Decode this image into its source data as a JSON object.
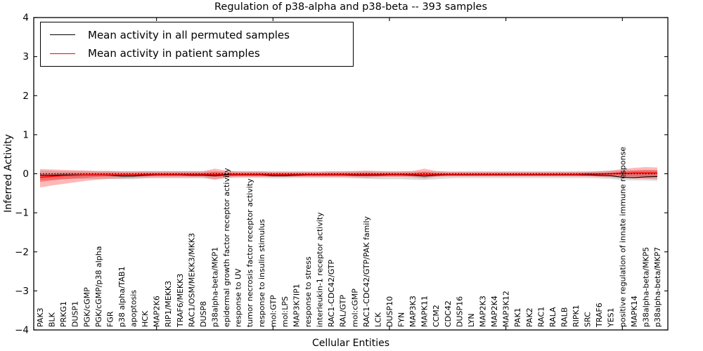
{
  "chart_data": {
    "type": "line",
    "title": "Regulation of p38-alpha and p38-beta -- 393 samples",
    "xlabel": "Cellular Entities",
    "ylabel": "Inferred Activity",
    "ylim": [
      -4,
      4
    ],
    "yticks": [
      -4,
      -3,
      -2,
      -1,
      0,
      1,
      2,
      3,
      4
    ],
    "xtick_indices": [
      10,
      20,
      30,
      40,
      50
    ],
    "grid": false,
    "legend_position": "upper left",
    "categories": [
      "PAK3",
      "BLK",
      "PRKG1",
      "DUSP1",
      "PGK/cGMP",
      "PGK/cGMP/p38 alpha",
      "FGR",
      "p38 alpha/TAB1",
      "apoptosis",
      "HCK",
      "MAP2K6",
      "RIP1/MEKK3",
      "TRAF6/MEKK3",
      "RAC1/OSM/MEKK3/MKK3",
      "DUSP8",
      "p38alpha-beta/MKP1",
      "epidermal growth factor receptor activity",
      "response to UV",
      "tumor necrosis factor receptor activity",
      "response to insulin stimulus",
      "mol:GTP",
      "mol:LPS",
      "MAP3K7IP1",
      "response to stress",
      "interleukin-1 receptor activity",
      "RAC1-CDC42/GTP",
      "RAL/GTP",
      "mol:cGMP",
      "RAC1-CDC42/GTP/PAK family",
      "LCK",
      "DUSP10",
      "FYN",
      "MAP3K3",
      "MAPK11",
      "CCM2",
      "CDC42",
      "DUSP16",
      "LYN",
      "MAP2K3",
      "MAP2K4",
      "MAP3K12",
      "PAK1",
      "PAK2",
      "RAC1",
      "RALA",
      "RALB",
      "RIPK1",
      "SRC",
      "TRAF6",
      "YES1",
      "positive regulation of innate immune response",
      "MAPK14",
      "p38alpha-beta/MKP5",
      "p38alpha-beta/MKP7"
    ],
    "zero_line": {
      "y": 0,
      "style": "dotted",
      "color": "#000000"
    },
    "series": [
      {
        "name": "Mean activity in all permuted samples",
        "color": "#000000",
        "values": [
          -0.04,
          -0.04,
          -0.03,
          -0.03,
          -0.03,
          -0.03,
          -0.04,
          -0.06,
          -0.06,
          -0.04,
          -0.03,
          -0.03,
          -0.03,
          -0.04,
          -0.04,
          -0.05,
          -0.03,
          -0.03,
          -0.03,
          -0.03,
          -0.05,
          -0.05,
          -0.04,
          -0.03,
          -0.03,
          -0.03,
          -0.03,
          -0.04,
          -0.04,
          -0.04,
          -0.03,
          -0.03,
          -0.04,
          -0.06,
          -0.04,
          -0.03,
          -0.03,
          -0.03,
          -0.03,
          -0.03,
          -0.03,
          -0.03,
          -0.03,
          -0.03,
          -0.03,
          -0.03,
          -0.03,
          -0.03,
          -0.04,
          -0.05,
          -0.09,
          -0.1,
          -0.08,
          -0.07
        ]
      },
      {
        "name": "Mean activity in patient samples",
        "color": "#ff0000",
        "values": [
          -0.09,
          -0.07,
          -0.05,
          -0.04,
          -0.03,
          -0.03,
          -0.03,
          -0.03,
          -0.03,
          -0.02,
          -0.02,
          -0.02,
          -0.02,
          -0.02,
          -0.02,
          -0.02,
          -0.02,
          -0.02,
          -0.02,
          -0.02,
          -0.02,
          -0.02,
          -0.02,
          -0.02,
          -0.02,
          -0.02,
          -0.02,
          -0.02,
          -0.02,
          -0.02,
          -0.02,
          -0.02,
          -0.02,
          -0.02,
          -0.02,
          -0.02,
          -0.02,
          -0.02,
          -0.02,
          -0.02,
          -0.02,
          -0.02,
          -0.02,
          -0.02,
          -0.02,
          -0.02,
          -0.02,
          -0.01,
          -0.01,
          0.0,
          0.01,
          0.02,
          0.02,
          0.02
        ]
      }
    ],
    "bands": [
      {
        "name": "permuted-samples-band",
        "color": "#bdbdbd",
        "opacity": 0.55,
        "upper": [
          0.08,
          0.08,
          0.07,
          0.07,
          0.07,
          0.07,
          0.07,
          0.06,
          0.06,
          0.07,
          0.07,
          0.07,
          0.07,
          0.07,
          0.07,
          0.07,
          0.06,
          0.06,
          0.06,
          0.06,
          0.06,
          0.06,
          0.06,
          0.06,
          0.06,
          0.06,
          0.06,
          0.06,
          0.06,
          0.06,
          0.06,
          0.06,
          0.06,
          0.06,
          0.06,
          0.06,
          0.06,
          0.06,
          0.06,
          0.06,
          0.06,
          0.06,
          0.06,
          0.06,
          0.06,
          0.06,
          0.06,
          0.06,
          0.07,
          0.08,
          0.09,
          0.09,
          0.1,
          0.1
        ],
        "lower": [
          -0.16,
          -0.15,
          -0.14,
          -0.13,
          -0.13,
          -0.13,
          -0.13,
          -0.14,
          -0.14,
          -0.12,
          -0.12,
          -0.12,
          -0.12,
          -0.12,
          -0.12,
          -0.13,
          -0.11,
          -0.11,
          -0.11,
          -0.11,
          -0.12,
          -0.12,
          -0.11,
          -0.11,
          -0.11,
          -0.11,
          -0.11,
          -0.12,
          -0.13,
          -0.14,
          -0.14,
          -0.14,
          -0.15,
          -0.16,
          -0.14,
          -0.12,
          -0.11,
          -0.11,
          -0.11,
          -0.11,
          -0.11,
          -0.11,
          -0.11,
          -0.11,
          -0.11,
          -0.11,
          -0.11,
          -0.11,
          -0.12,
          -0.13,
          -0.16,
          -0.17,
          -0.17,
          -0.18
        ]
      },
      {
        "name": "patient-samples-band-outer",
        "color": "#ff0000",
        "opacity": 0.28,
        "upper": [
          0.12,
          0.11,
          0.1,
          0.09,
          0.08,
          0.07,
          0.07,
          0.06,
          0.06,
          0.06,
          0.06,
          0.06,
          0.06,
          0.06,
          0.06,
          0.13,
          0.08,
          0.06,
          0.06,
          0.06,
          0.05,
          0.05,
          0.05,
          0.05,
          0.05,
          0.06,
          0.06,
          0.07,
          0.08,
          0.07,
          0.06,
          0.06,
          0.07,
          0.13,
          0.07,
          0.05,
          0.05,
          0.05,
          0.05,
          0.05,
          0.05,
          0.05,
          0.05,
          0.05,
          0.05,
          0.05,
          0.05,
          0.05,
          0.06,
          0.08,
          0.12,
          0.15,
          0.17,
          0.16
        ],
        "lower": [
          -0.35,
          -0.3,
          -0.26,
          -0.22,
          -0.18,
          -0.15,
          -0.13,
          -0.12,
          -0.11,
          -0.1,
          -0.09,
          -0.09,
          -0.09,
          -0.09,
          -0.09,
          -0.16,
          -0.1,
          -0.08,
          -0.08,
          -0.08,
          -0.08,
          -0.08,
          -0.08,
          -0.08,
          -0.08,
          -0.08,
          -0.08,
          -0.09,
          -0.1,
          -0.09,
          -0.08,
          -0.08,
          -0.09,
          -0.12,
          -0.08,
          -0.07,
          -0.07,
          -0.07,
          -0.07,
          -0.07,
          -0.07,
          -0.07,
          -0.07,
          -0.07,
          -0.07,
          -0.07,
          -0.07,
          -0.07,
          -0.08,
          -0.09,
          -0.11,
          -0.12,
          -0.13,
          -0.14
        ]
      },
      {
        "name": "patient-samples-band-inner",
        "color": "#ff0000",
        "opacity": 0.32,
        "upper": [
          0.0,
          0.01,
          0.02,
          0.02,
          0.02,
          0.02,
          0.02,
          0.01,
          0.01,
          0.02,
          0.02,
          0.02,
          0.02,
          0.02,
          0.02,
          0.05,
          0.03,
          0.02,
          0.02,
          0.02,
          0.01,
          0.01,
          0.01,
          0.01,
          0.01,
          0.02,
          0.02,
          0.02,
          0.03,
          0.02,
          0.02,
          0.02,
          0.02,
          0.05,
          0.02,
          0.01,
          0.01,
          0.01,
          0.01,
          0.01,
          0.01,
          0.01,
          0.01,
          0.01,
          0.01,
          0.01,
          0.01,
          0.02,
          0.02,
          0.03,
          0.06,
          0.08,
          0.09,
          0.08
        ],
        "lower": [
          -0.21,
          -0.17,
          -0.14,
          -0.12,
          -0.1,
          -0.08,
          -0.07,
          -0.07,
          -0.06,
          -0.06,
          -0.05,
          -0.05,
          -0.05,
          -0.05,
          -0.05,
          -0.08,
          -0.06,
          -0.05,
          -0.05,
          -0.05,
          -0.05,
          -0.05,
          -0.05,
          -0.05,
          -0.05,
          -0.05,
          -0.05,
          -0.05,
          -0.06,
          -0.05,
          -0.05,
          -0.05,
          -0.05,
          -0.07,
          -0.05,
          -0.04,
          -0.04,
          -0.04,
          -0.04,
          -0.04,
          -0.04,
          -0.04,
          -0.04,
          -0.04,
          -0.04,
          -0.04,
          -0.04,
          -0.04,
          -0.05,
          -0.05,
          -0.06,
          -0.07,
          -0.07,
          -0.08
        ]
      }
    ]
  },
  "legend": {
    "items": [
      {
        "label": "Mean activity in all permuted samples",
        "color": "#000000"
      },
      {
        "label": "Mean activity in patient samples",
        "color": "#ff0000"
      }
    ]
  }
}
